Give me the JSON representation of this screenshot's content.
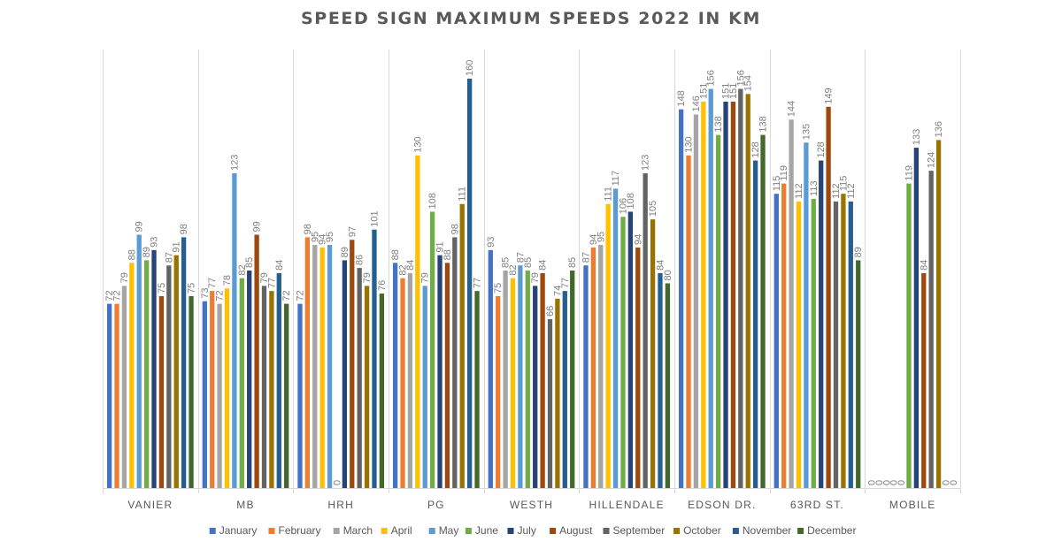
{
  "chart_data": {
    "type": "bar",
    "title": "SPEED SIGN MAXIMUM SPEEDS 2022 IN KM",
    "xlabel": "",
    "ylabel": "",
    "ylim": [
      0,
      170
    ],
    "grid": "vertical category separators only",
    "legend_position": "bottom",
    "categories": [
      "VANIER",
      "MB",
      "HRH",
      "PG",
      "WESTH",
      "HILLENDALE",
      "EDSON DR.",
      "63RD ST.",
      "MOBILE"
    ],
    "series": [
      {
        "name": "January",
        "color": "#4472C4",
        "values": [
          72,
          73,
          72,
          88,
          93,
          87,
          148,
          115,
          0
        ]
      },
      {
        "name": "February",
        "color": "#ED7D31",
        "values": [
          72,
          77,
          98,
          82,
          75,
          94,
          130,
          119,
          0
        ]
      },
      {
        "name": "March",
        "color": "#A5A5A5",
        "values": [
          79,
          72,
          95,
          84,
          85,
          95,
          146,
          144,
          0
        ]
      },
      {
        "name": "April",
        "color": "#FFC000",
        "values": [
          88,
          78,
          94,
          130,
          82,
          111,
          151,
          112,
          0
        ]
      },
      {
        "name": "May",
        "color": "#5B9BD5",
        "values": [
          99,
          123,
          95,
          79,
          87,
          117,
          156,
          135,
          0
        ]
      },
      {
        "name": "June",
        "color": "#70AD47",
        "values": [
          89,
          82,
          0,
          108,
          85,
          106,
          138,
          113,
          119
        ]
      },
      {
        "name": "July",
        "color": "#264478",
        "values": [
          93,
          85,
          89,
          91,
          79,
          108,
          151,
          128,
          133
        ]
      },
      {
        "name": "August",
        "color": "#9E480E",
        "values": [
          75,
          99,
          97,
          88,
          84,
          94,
          151,
          149,
          84
        ]
      },
      {
        "name": "September",
        "color": "#636363",
        "values": [
          87,
          79,
          86,
          98,
          66,
          123,
          156,
          112,
          124
        ]
      },
      {
        "name": "October",
        "color": "#997300",
        "values": [
          91,
          77,
          79,
          111,
          74,
          105,
          154,
          115,
          136
        ]
      },
      {
        "name": "November",
        "color": "#255E91",
        "values": [
          98,
          84,
          101,
          160,
          77,
          84,
          128,
          112,
          0
        ]
      },
      {
        "name": "December",
        "color": "#43682B",
        "values": [
          75,
          72,
          76,
          77,
          85,
          80,
          138,
          89,
          0
        ]
      }
    ]
  }
}
